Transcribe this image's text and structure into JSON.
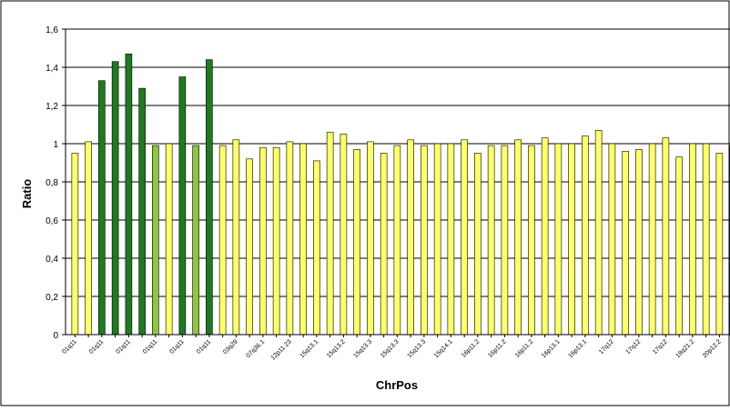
{
  "chart_data": {
    "type": "bar",
    "xlabel": "ChrPos",
    "ylabel": "Ratio",
    "ylim": [
      0,
      1.6
    ],
    "yticks": [
      "0",
      "0,2",
      "0,4",
      "0,6",
      "0,8",
      "1",
      "1,2",
      "1,4",
      "1,6"
    ],
    "grid": true,
    "legend": "none",
    "colors": {
      "dark_green": "#1f7a1f",
      "light_green": "#8fc63c",
      "yellow": "#ffff66",
      "bar_outline": "#000000",
      "grid": "#000000"
    },
    "categories": [
      "01q11",
      "",
      "01q11",
      "",
      "01q11",
      "",
      "01q11",
      "",
      "01q11",
      "",
      "01q11",
      "",
      "03q29",
      "",
      "07q36.1",
      "",
      "12p11.23",
      "",
      "15q13.1",
      "",
      "15q13.2",
      "",
      "15q13.3",
      "",
      "15q13.3",
      "",
      "15q13.3",
      "",
      "15q14.1",
      "",
      "16p11.2",
      "",
      "16p11.2",
      "",
      "16p11.2",
      "",
      "16p13.1",
      "",
      "16p13.1",
      "",
      "17q12",
      "",
      "17q12",
      "",
      "17q12",
      "",
      "18q21.2",
      "",
      "20p12.2",
      ""
    ],
    "values": [
      0.95,
      1.01,
      1.33,
      1.43,
      1.47,
      1.29,
      0.99,
      1.0,
      1.35,
      0.99,
      1.44,
      0.99,
      1.02,
      0.92,
      0.98,
      0.98,
      1.01,
      1.0,
      0.91,
      1.06,
      1.05,
      0.97,
      1.01,
      0.95,
      0.99,
      1.02,
      0.99,
      1.0,
      1.0,
      1.02,
      0.95,
      0.99,
      0.99,
      1.02,
      0.99,
      1.03,
      1.0,
      1.0,
      1.04,
      1.07,
      1.0,
      0.96,
      0.97,
      1.0,
      1.03,
      0.93,
      1.0,
      1.0,
      0.95,
      0.99
    ],
    "bar_colors": [
      "yellow",
      "yellow",
      "dark_green",
      "dark_green",
      "dark_green",
      "dark_green",
      "light_green",
      "yellow",
      "dark_green",
      "light_green",
      "dark_green",
      "yellow",
      "yellow",
      "yellow",
      "yellow",
      "yellow",
      "yellow",
      "yellow",
      "yellow",
      "yellow",
      "yellow",
      "yellow",
      "yellow",
      "yellow",
      "yellow",
      "yellow",
      "yellow",
      "yellow",
      "yellow",
      "yellow",
      "yellow",
      "yellow",
      "yellow",
      "yellow",
      "yellow",
      "yellow",
      "yellow",
      "yellow",
      "yellow",
      "yellow",
      "yellow",
      "yellow",
      "yellow",
      "yellow",
      "yellow",
      "yellow",
      "yellow",
      "yellow",
      "yellow",
      "yellow"
    ]
  }
}
